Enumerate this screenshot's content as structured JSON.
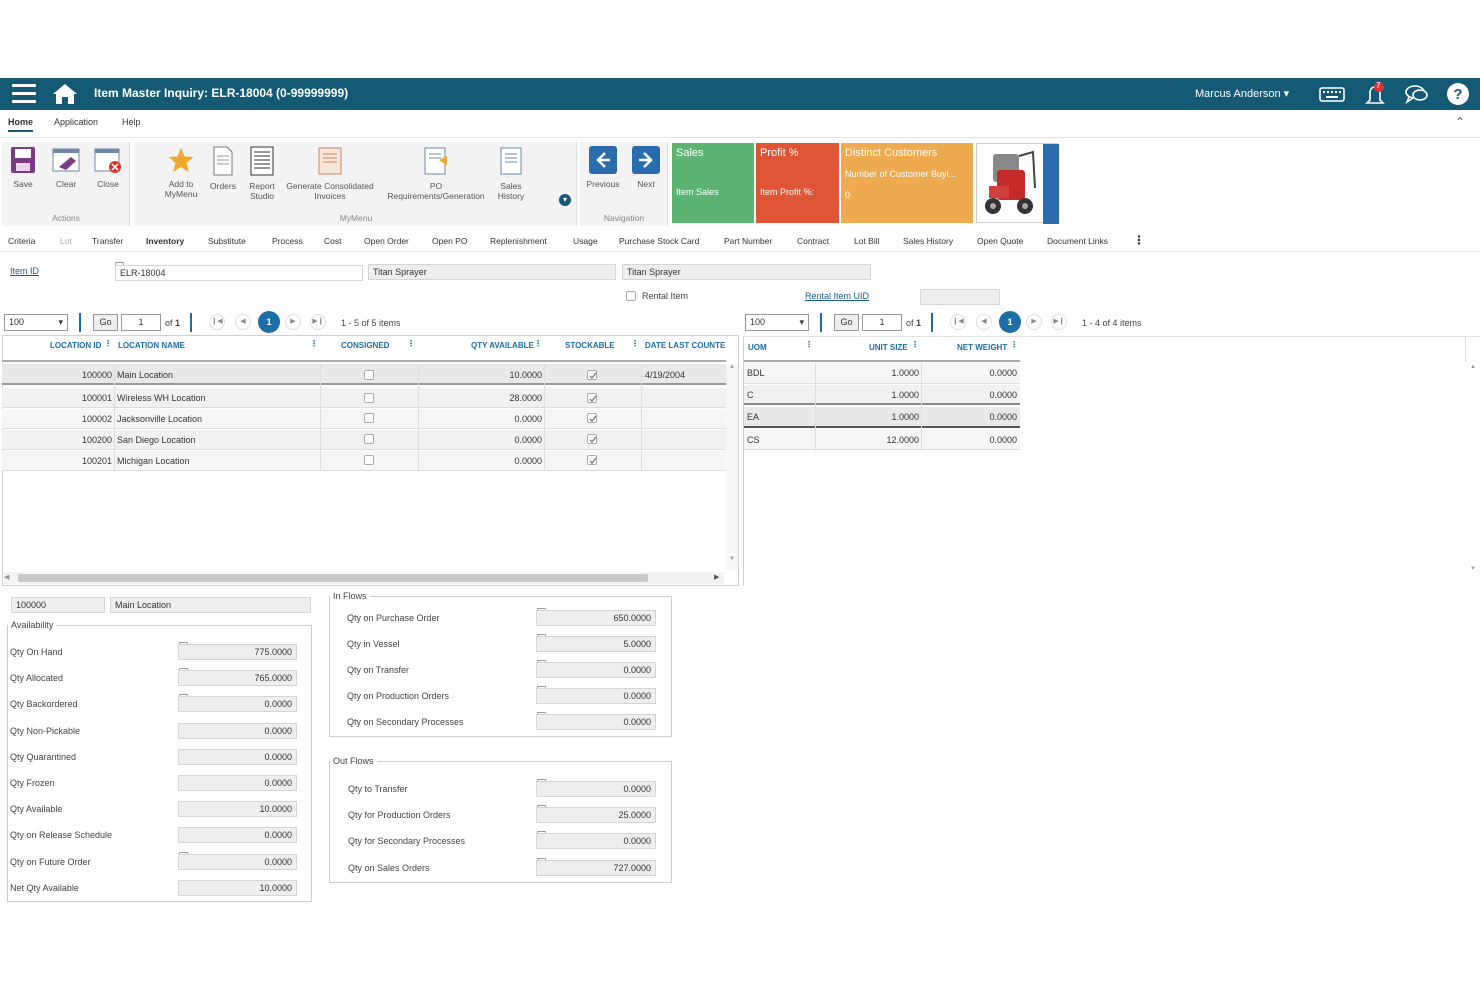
{
  "header": {
    "title": "Item Master Inquiry: ELR-18004 (0-99999999)",
    "user": "Marcus Anderson",
    "notification_count": "7"
  },
  "menu_tabs": [
    "Home",
    "Application",
    "Help"
  ],
  "ribbon": {
    "actions": {
      "save": "Save",
      "clear": "Clear",
      "close": "Close",
      "caption": "Actions"
    },
    "mymenu": {
      "add_to_mymenu": "Add to MyMenu",
      "orders": "Orders",
      "report_studio": "Report Studio",
      "generate_invoices": "Generate Consolidated Invoices",
      "po_requirements": "PO Requirements/Generation",
      "sales_history": "Sales History",
      "caption": "MyMenu"
    },
    "navigation": {
      "previous": "Previous",
      "next": "Next",
      "caption": "Navigation"
    }
  },
  "tiles": {
    "sales": {
      "title": "Sales",
      "sub": "Item Sales",
      "color": "#5bb374"
    },
    "profit": {
      "title": "Profit %",
      "sub": "Item Profit %:",
      "color": "#e05536"
    },
    "customers": {
      "title": "Distinct Customers",
      "sub": "Number of Customer Buyi...",
      "value": "0",
      "color": "#eeaa4e"
    }
  },
  "sub_tabs": [
    "Criteria",
    "Lot",
    "Transfer",
    "Inventory",
    "Substitute",
    "Process",
    "Cost",
    "Open Order",
    "Open PO",
    "Replenishment",
    "Usage",
    "Purchase Stock Card",
    "Part Number",
    "Contract",
    "Lot Bill",
    "Sales History",
    "Open Quote",
    "Document Links"
  ],
  "item": {
    "item_id_label": "Item ID",
    "item_id": "ELR-18004",
    "desc1": "Titan Sprayer",
    "desc2": "Titan Sprayer",
    "rental_item_label": "Rental Item",
    "rental_item_uid_label": "Rental Item UID"
  },
  "left_pager": {
    "page_size": "100",
    "go": "Go",
    "page": "1",
    "of": "of",
    "total_pages": "1",
    "current": "1",
    "summary": "1 - 5 of 5 items"
  },
  "right_pager": {
    "page_size": "100",
    "go": "Go",
    "page": "1",
    "of": "of",
    "total_pages": "1",
    "current": "1",
    "summary": "1 - 4 of 4 items"
  },
  "locations": {
    "columns": [
      "LOCATION ID",
      "LOCATION NAME",
      "CONSIGNED",
      "QTY AVAILABLE",
      "STOCKABLE",
      "DATE LAST COUNTED"
    ],
    "rows": [
      {
        "id": "100000",
        "name": "Main Location",
        "consigned": false,
        "qty": "10.0000",
        "stockable": true,
        "date": "4/19/2004"
      },
      {
        "id": "100001",
        "name": "Wireless WH Location",
        "consigned": false,
        "qty": "28.0000",
        "stockable": true,
        "date": ""
      },
      {
        "id": "100002",
        "name": "Jacksonville Location",
        "consigned": false,
        "qty": "0.0000",
        "stockable": true,
        "date": ""
      },
      {
        "id": "100200",
        "name": "San Diego Location",
        "consigned": false,
        "qty": "0.0000",
        "stockable": true,
        "date": ""
      },
      {
        "id": "100201",
        "name": "Michigan Location",
        "consigned": false,
        "qty": "0.0000",
        "stockable": true,
        "date": ""
      }
    ]
  },
  "uom": {
    "columns": [
      "UOM",
      "UNIT SIZE",
      "NET WEIGHT"
    ],
    "rows": [
      {
        "uom": "BDL",
        "size": "1.0000",
        "weight": "0.0000"
      },
      {
        "uom": "C",
        "size": "1.0000",
        "weight": "0.0000"
      },
      {
        "uom": "EA",
        "size": "1.0000",
        "weight": "0.0000"
      },
      {
        "uom": "CS",
        "size": "12.0000",
        "weight": "0.0000"
      }
    ]
  },
  "selected_location": {
    "id": "100000",
    "name": "Main Location"
  },
  "availability": {
    "legend": "Availability",
    "rows": [
      {
        "label": "Qty On Hand",
        "value": "775.0000",
        "edit": true
      },
      {
        "label": "Qty Allocated",
        "value": "765.0000",
        "edit": true
      },
      {
        "label": "Qty Backordered",
        "value": "0.0000",
        "edit": true
      },
      {
        "label": "Qty Non-Pickable",
        "value": "0.0000",
        "edit": false
      },
      {
        "label": "Qty Quarantined",
        "value": "0.0000",
        "edit": false
      },
      {
        "label": "Qty Frozen",
        "value": "0.0000",
        "edit": false
      },
      {
        "label": "Qty Available",
        "value": "10.0000",
        "edit": false
      },
      {
        "label": "Qty on Release Schedule",
        "value": "0.0000",
        "edit": false
      },
      {
        "label": "Qty on Future Order",
        "value": "0.0000",
        "edit": true
      },
      {
        "label": "Net Qty Available",
        "value": "10.0000",
        "edit": false
      }
    ]
  },
  "in_flows": {
    "legend": "In Flows",
    "rows": [
      {
        "label": "Qty on Purchase Order",
        "value": "650.0000"
      },
      {
        "label": "Qty in Vessel",
        "value": "5.0000"
      },
      {
        "label": "Qty on Transfer",
        "value": "0.0000"
      },
      {
        "label": "Qty on Production Orders",
        "value": "0.0000"
      },
      {
        "label": "Qty on Secondary Processes",
        "value": "0.0000"
      }
    ]
  },
  "out_flows": {
    "legend": "Out Flows",
    "rows": [
      {
        "label": "Qty to Transfer",
        "value": "0.0000"
      },
      {
        "label": "Qty for Production Orders",
        "value": "25.0000"
      },
      {
        "label": "Qty for Secondary Processes",
        "value": "0.0000"
      },
      {
        "label": "Qty on Sales Orders",
        "value": "727.0000"
      }
    ]
  }
}
